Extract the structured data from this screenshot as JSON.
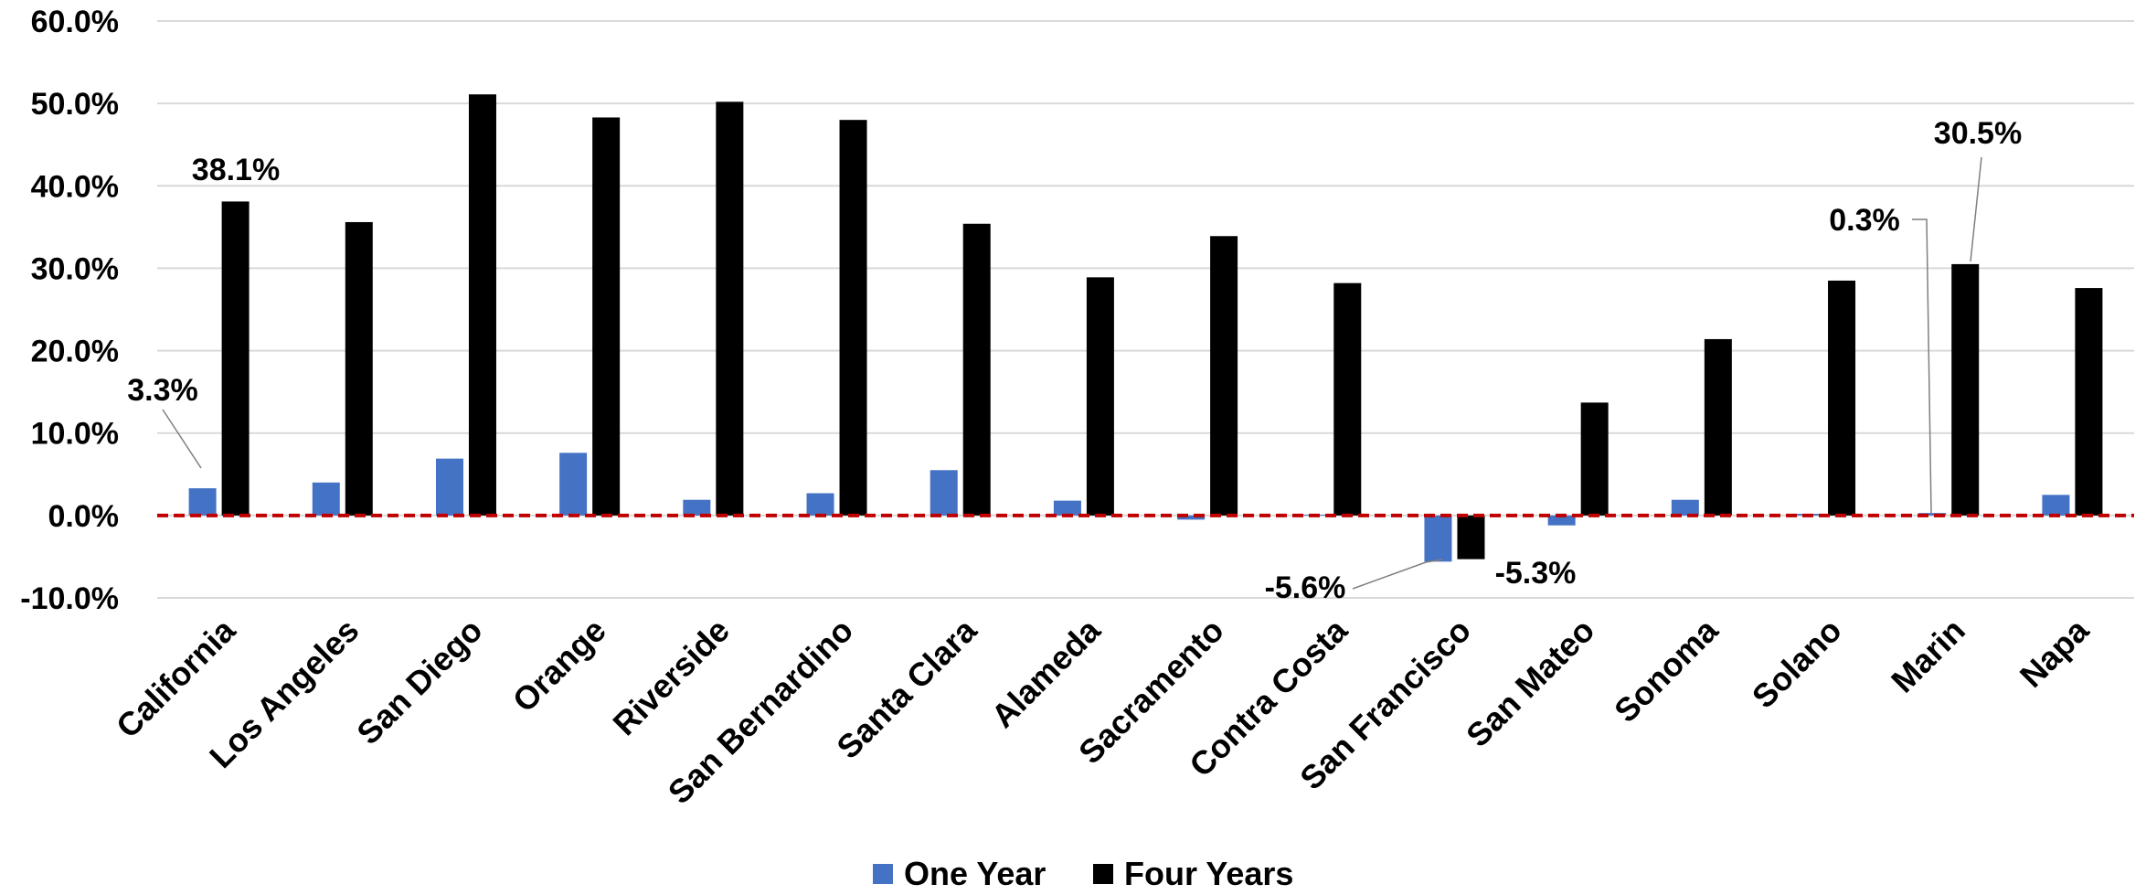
{
  "chart_data": {
    "type": "bar",
    "categories": [
      "California",
      "Los Angeles",
      "San Diego",
      "Orange",
      "Riverside",
      "San Bernardino",
      "Santa Clara",
      "Alameda",
      "Sacramento",
      "Contra Costa",
      "San Francisco",
      "San Mateo",
      "Sonoma",
      "Solano",
      "Marin",
      "Napa"
    ],
    "series": [
      {
        "name": "One Year",
        "color": "#4472C4",
        "values": [
          3.3,
          4.0,
          6.9,
          7.6,
          1.9,
          2.7,
          5.5,
          1.8,
          -0.5,
          0.1,
          -5.6,
          -1.2,
          1.9,
          0.2,
          0.3,
          2.5
        ]
      },
      {
        "name": "Four Years",
        "color": "#000000",
        "values": [
          38.1,
          35.6,
          51.1,
          48.3,
          50.2,
          48.0,
          35.4,
          28.9,
          33.9,
          28.2,
          -5.3,
          13.7,
          21.4,
          28.5,
          30.5,
          27.6
        ]
      }
    ],
    "ylim": [
      -10,
      60
    ],
    "yticks": [
      "-10.0%",
      "0.0%",
      "10.0%",
      "20.0%",
      "30.0%",
      "40.0%",
      "50.0%",
      "60.0%"
    ],
    "grid": true,
    "reference_line": {
      "value": 0,
      "color": "#C00000",
      "style": "dashed"
    },
    "legend": "bottom",
    "annotations": [
      {
        "text": "3.3%",
        "category": "California",
        "series": "One Year"
      },
      {
        "text": "38.1%",
        "category": "California",
        "series": "Four Years"
      },
      {
        "text": "-5.6%",
        "category": "San Francisco",
        "series": "One Year"
      },
      {
        "text": "-5.3%",
        "category": "San Francisco",
        "series": "Four Years"
      },
      {
        "text": "0.3%",
        "category": "Marin",
        "series": "One Year"
      },
      {
        "text": "30.5%",
        "category": "Marin",
        "series": "Four Years"
      }
    ]
  }
}
